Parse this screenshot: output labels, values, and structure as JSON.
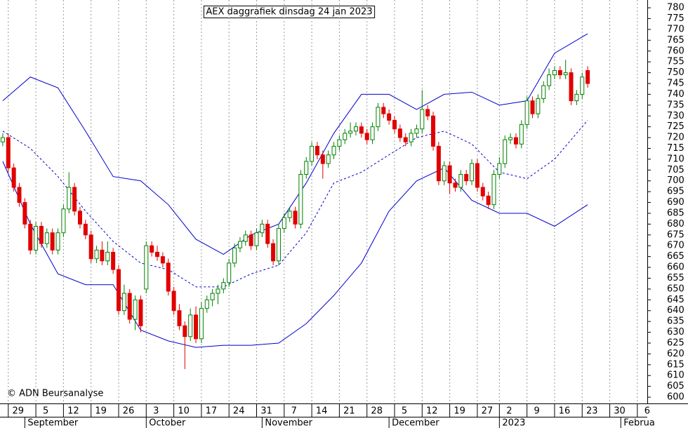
{
  "chart_data": {
    "type": "candlestick",
    "title": "AEX daggrafiek dinsdag 24 jan 2023",
    "copyright": "© ADN Beursanalyse",
    "up_color": "#008000",
    "down_color": "#e00000",
    "open": [
      718,
      720,
      706,
      697,
      690,
      680,
      668,
      679,
      671,
      676,
      668,
      676,
      687,
      697,
      686,
      680,
      675,
      664,
      668,
      663,
      667,
      659,
      640,
      648,
      636,
      645,
      650,
      670,
      667,
      665,
      662,
      649,
      640,
      633,
      628,
      638,
      627,
      641,
      645,
      648,
      650,
      653,
      662,
      669,
      672,
      675,
      670,
      676,
      680,
      671,
      663,
      678,
      683,
      686,
      680,
      703,
      709,
      716,
      712,
      708,
      712,
      716,
      719,
      722,
      723,
      725,
      722,
      719,
      725,
      734,
      731,
      728,
      724,
      720,
      718,
      722,
      724,
      733,
      730,
      716,
      700,
      707,
      699,
      697,
      703,
      700,
      708,
      697,
      693,
      689,
      703,
      708,
      719,
      720,
      717,
      726,
      737,
      731,
      738,
      744,
      749,
      751,
      749,
      750,
      737,
      740,
      751
    ],
    "high": [
      722,
      722,
      708,
      699,
      692,
      682,
      681,
      681,
      678,
      678,
      678,
      689,
      704,
      699,
      688,
      682,
      677,
      670,
      672,
      672,
      669,
      661,
      652,
      650,
      647,
      647,
      672,
      672,
      670,
      667,
      664,
      651,
      643,
      635,
      641,
      642,
      644,
      647,
      650,
      652,
      655,
      664,
      671,
      674,
      677,
      677,
      678,
      682,
      682,
      673,
      680,
      685,
      688,
      688,
      705,
      711,
      718,
      718,
      714,
      714,
      718,
      721,
      724,
      727,
      727,
      727,
      724,
      727,
      736,
      736,
      733,
      730,
      726,
      722,
      724,
      726,
      742,
      735,
      732,
      718,
      709,
      709,
      701,
      705,
      705,
      710,
      710,
      699,
      695,
      705,
      711,
      721,
      722,
      722,
      728,
      739,
      739,
      740,
      746,
      752,
      753,
      753,
      756,
      752,
      742,
      750,
      753
    ],
    "low": [
      716,
      704,
      695,
      688,
      678,
      666,
      666,
      669,
      669,
      666,
      666,
      674,
      685,
      684,
      678,
      673,
      662,
      662,
      661,
      661,
      657,
      638,
      638,
      634,
      631,
      630,
      648,
      665,
      663,
      660,
      647,
      638,
      631,
      613,
      626,
      625,
      625,
      639,
      642,
      643,
      648,
      651,
      660,
      667,
      670,
      668,
      668,
      674,
      669,
      661,
      661,
      676,
      681,
      678,
      678,
      701,
      707,
      710,
      701,
      706,
      710,
      714,
      717,
      720,
      721,
      720,
      717,
      717,
      723,
      729,
      726,
      722,
      718,
      716,
      716,
      720,
      722,
      728,
      714,
      698,
      698,
      694,
      695,
      695,
      698,
      698,
      695,
      691,
      687,
      687,
      701,
      706,
      717,
      715,
      715,
      724,
      729,
      729,
      736,
      742,
      747,
      747,
      747,
      735,
      735,
      738,
      743
    ],
    "close": [
      720,
      706,
      697,
      690,
      680,
      668,
      679,
      671,
      676,
      668,
      676,
      687,
      697,
      686,
      680,
      675,
      664,
      668,
      663,
      667,
      659,
      640,
      648,
      636,
      645,
      633,
      670,
      667,
      665,
      662,
      649,
      640,
      633,
      628,
      638,
      627,
      641,
      645,
      648,
      650,
      653,
      662,
      669,
      672,
      675,
      670,
      676,
      680,
      671,
      663,
      678,
      683,
      686,
      680,
      703,
      709,
      716,
      712,
      708,
      712,
      716,
      719,
      722,
      723,
      725,
      722,
      719,
      725,
      734,
      731,
      728,
      724,
      720,
      718,
      722,
      724,
      733,
      730,
      716,
      700,
      707,
      699,
      697,
      703,
      700,
      708,
      697,
      693,
      689,
      703,
      708,
      719,
      720,
      717,
      726,
      737,
      731,
      738,
      744,
      749,
      751,
      749,
      750,
      737,
      740,
      748,
      745
    ],
    "band_x": [
      0,
      5,
      10,
      15,
      20,
      25,
      30,
      35,
      40,
      45,
      50,
      55,
      60,
      65,
      70,
      75,
      80,
      85,
      90,
      95,
      100,
      106
    ],
    "bands": [
      {
        "color": "#0000cc",
        "dashed": false,
        "values": [
          737,
          748,
          743,
          723,
          702,
          700,
          689,
          673,
          666,
          675,
          680,
          699,
          722,
          740,
          740,
          733,
          740,
          741,
          735,
          737,
          759,
          768
        ]
      },
      {
        "color": "#0000cc",
        "dashed": true,
        "values": [
          723,
          715,
          702,
          686,
          672,
          662,
          659,
          651,
          651,
          657,
          661,
          676,
          699,
          704,
          712,
          720,
          723,
          717,
          704,
          701,
          710,
          728
        ]
      },
      {
        "color": "#0000cc",
        "dashed": false,
        "values": [
          709,
          680,
          657,
          652,
          652,
          631,
          626,
          623,
          624,
          624,
          625,
          634,
          647,
          662,
          686,
          700,
          706,
          691,
          685,
          685,
          679,
          689
        ]
      }
    ],
    "xlim": [
      -0.5,
      116.8
    ],
    "xticks": [
      {
        "value": 1,
        "label": "29"
      },
      {
        "value": 6,
        "label": "5"
      },
      {
        "value": 11,
        "label": "12"
      },
      {
        "value": 16,
        "label": "19"
      },
      {
        "value": 21,
        "label": "26"
      },
      {
        "value": 26,
        "label": "3"
      },
      {
        "value": 31,
        "label": "10"
      },
      {
        "value": 36,
        "label": "17"
      },
      {
        "value": 41,
        "label": "24"
      },
      {
        "value": 46,
        "label": "31"
      },
      {
        "value": 51,
        "label": "7"
      },
      {
        "value": 56,
        "label": "14"
      },
      {
        "value": 61,
        "label": "21"
      },
      {
        "value": 66,
        "label": "28"
      },
      {
        "value": 71,
        "label": "5"
      },
      {
        "value": 76,
        "label": "12"
      },
      {
        "value": 81,
        "label": "19"
      },
      {
        "value": 86,
        "label": "27"
      },
      {
        "value": 90,
        "label": "2"
      },
      {
        "value": 95,
        "label": "9"
      },
      {
        "value": 100,
        "label": "16"
      },
      {
        "value": 105,
        "label": "23"
      },
      {
        "value": 110,
        "label": "30"
      },
      {
        "value": 115,
        "label": "6"
      }
    ],
    "month_labels": [
      {
        "value": 4,
        "label": "September"
      },
      {
        "value": 26,
        "label": "October"
      },
      {
        "value": 47,
        "label": "November"
      },
      {
        "value": 70,
        "label": "December"
      },
      {
        "value": 90,
        "label": "2023"
      },
      {
        "value": 112,
        "label": "Februa"
      }
    ],
    "ylim": [
      597.1,
      783.6
    ],
    "yticks": [
      600,
      605,
      610,
      615,
      620,
      625,
      630,
      635,
      640,
      645,
      650,
      655,
      660,
      665,
      670,
      675,
      680,
      685,
      690,
      695,
      700,
      705,
      710,
      715,
      720,
      725,
      730,
      735,
      740,
      745,
      750,
      755,
      760,
      765,
      770,
      775,
      780
    ],
    "grid": true
  }
}
